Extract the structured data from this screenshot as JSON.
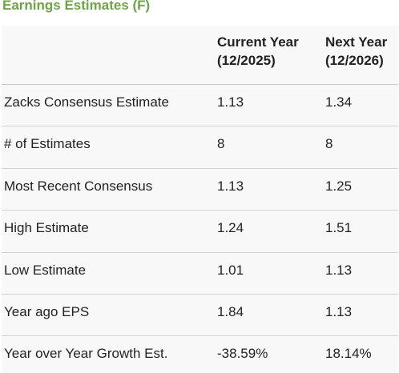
{
  "title": "Earnings Estimates (F)",
  "header": {
    "col1": "",
    "col2_line1": "Current Year",
    "col2_line2": "(12/2025)",
    "col3_line1": "Next Year",
    "col3_line2": "(12/2026)"
  },
  "rows": [
    {
      "label": "Zacks Consensus Estimate",
      "current": "1.13",
      "next": "1.34"
    },
    {
      "label": "# of Estimates",
      "current": "8",
      "next": "8"
    },
    {
      "label": "Most Recent Consensus",
      "current": "1.13",
      "next": "1.25"
    },
    {
      "label": "High Estimate",
      "current": "1.24",
      "next": "1.51"
    },
    {
      "label": "Low Estimate",
      "current": "1.01",
      "next": "1.13"
    },
    {
      "label": "Year ago EPS",
      "current": "1.84",
      "next": "1.13"
    },
    {
      "label": "Year over Year Growth Est.",
      "current": "-38.59%",
      "next": "18.14%"
    }
  ],
  "colors": {
    "title": "#6ea544",
    "row_background": "#f8f8f8",
    "divider": "#d2d2d2"
  }
}
